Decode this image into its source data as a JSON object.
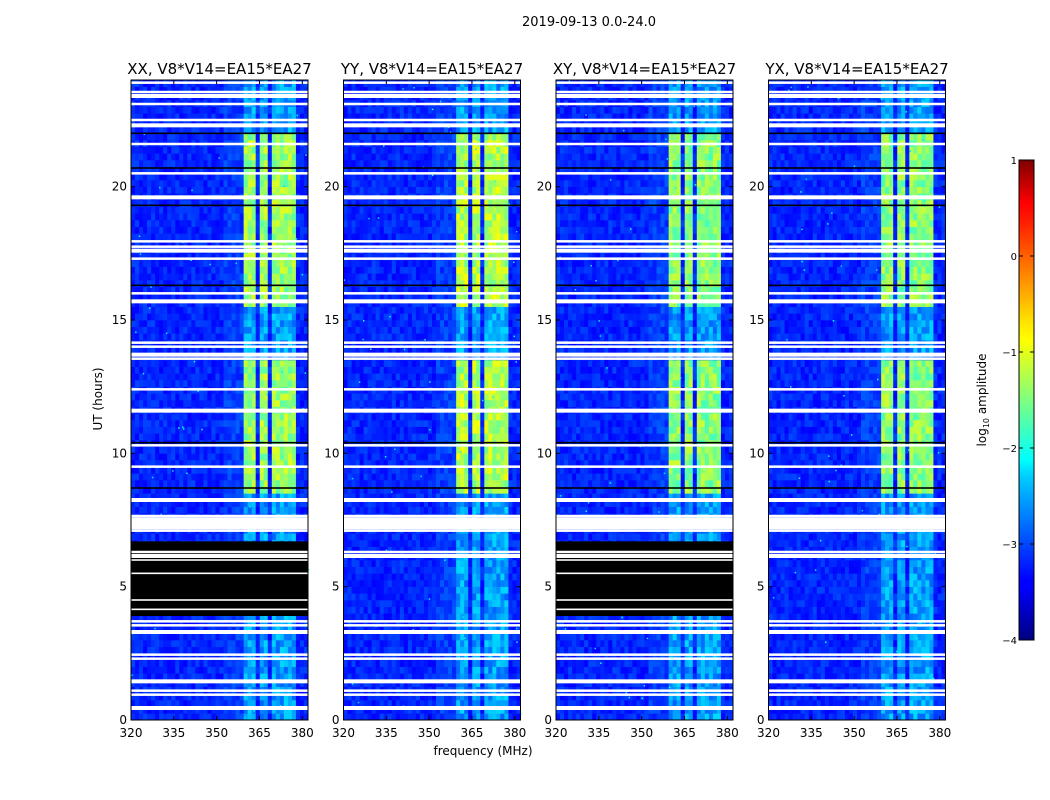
{
  "chart_data": {
    "type": "heatmap",
    "suptitle": "2019-09-13 0.0-24.0",
    "xlabel": "frequency (MHz)",
    "ylabel": "UT (hours)",
    "xlim": [
      320,
      382
    ],
    "ylim": [
      0,
      24
    ],
    "xticks": [
      320,
      335,
      350,
      365,
      380
    ],
    "yticks": [
      0,
      5,
      10,
      15,
      20
    ],
    "colormap": "jet",
    "colorbar": {
      "label_prefix": "log",
      "label_sub": "10",
      "label_suffix": " amplitude",
      "range": [
        -4,
        1
      ],
      "ticks": [
        -4,
        -3,
        -2,
        -1,
        0,
        1
      ],
      "tick_labels": [
        "−4",
        "−3",
        "−2",
        "−1",
        "0",
        "1"
      ]
    },
    "bright_band_mhz": [
      [
        360,
        364
      ],
      [
        364.5,
        368.5
      ],
      [
        369,
        373
      ],
      [
        373.5,
        378
      ]
    ],
    "active_hours": [
      [
        8.5,
        13.5
      ],
      [
        15.5,
        22
      ]
    ],
    "panels": [
      {
        "title": "XX, V8*V14=EA15*EA27",
        "flagged_hours": [
          3.9,
          6.7
        ],
        "bright_level": -1.0
      },
      {
        "title": "YY, V8*V14=EA15*EA27",
        "flagged_hours": null,
        "bright_level": -0.9
      },
      {
        "title": "XY, V8*V14=EA15*EA27",
        "flagged_hours": [
          3.9,
          6.7
        ],
        "bright_level": -1.1
      },
      {
        "title": "YX, V8*V14=EA15*EA27",
        "flagged_hours": null,
        "bright_level": -1.1
      }
    ],
    "blank_rows_hours": [
      0.45,
      0.95,
      1.1,
      1.45,
      2.3,
      2.45,
      3.3,
      3.55,
      3.7,
      6.15,
      6.3,
      7.1,
      7.3,
      7.55,
      7.65,
      8.25,
      9.5,
      10.3,
      11.6,
      12.4,
      13.55,
      13.7,
      14.0,
      14.15,
      15.7,
      16.0,
      17.3,
      17.6,
      17.75,
      17.95,
      19.6,
      20.5,
      21.6,
      22.3,
      22.5,
      23.1,
      23.4,
      23.55,
      23.9
    ],
    "dark_rows_hours": [
      8.7,
      10.4,
      16.3,
      19.3,
      20.7,
      22.0
    ]
  }
}
